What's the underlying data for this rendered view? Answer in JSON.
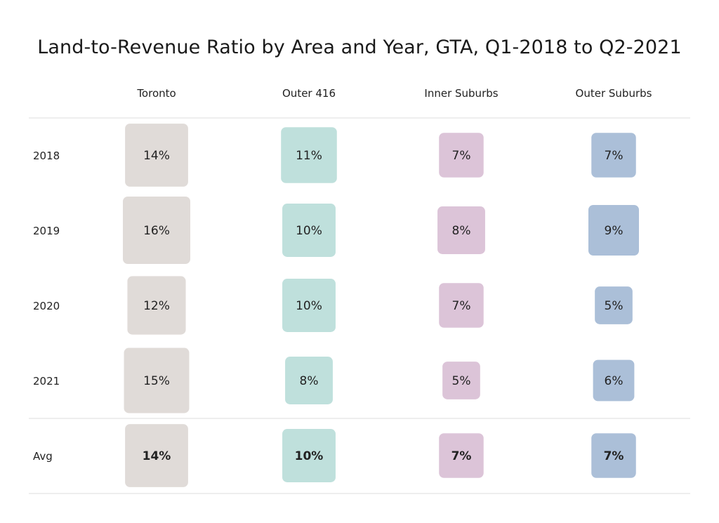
{
  "chart_data": {
    "type": "table",
    "title": "Land-to-Revenue Ratio by Area and Year, GTA, Q1-2018 to Q2-2021",
    "columns": [
      "Toronto",
      "Outer 416",
      "Inner Suburbs",
      "Outer Suburbs"
    ],
    "rows": [
      "2018",
      "2019",
      "2020",
      "2021",
      "Avg"
    ],
    "series": [
      {
        "name": "Toronto",
        "color": "#e0dbd8",
        "values": [
          14,
          16,
          12,
          15,
          14
        ],
        "labels": [
          "14%",
          "16%",
          "12%",
          "15%",
          "14%"
        ]
      },
      {
        "name": "Outer 416",
        "color": "#bfe0dc",
        "values": [
          11,
          10,
          10,
          8,
          10
        ],
        "labels": [
          "11%",
          "10%",
          "10%",
          "8%",
          "10%"
        ]
      },
      {
        "name": "Inner Suburbs",
        "color": "#dcc4d8",
        "values": [
          7,
          8,
          7,
          5,
          7
        ],
        "labels": [
          "7%",
          "8%",
          "7%",
          "5%",
          "7%"
        ]
      },
      {
        "name": "Outer Suburbs",
        "color": "#abbfd8",
        "values": [
          7,
          9,
          5,
          6,
          7
        ],
        "labels": [
          "7%",
          "9%",
          "5%",
          "6%",
          "7%"
        ]
      }
    ],
    "value_unit": "%",
    "bold_rows": [
      "Avg"
    ]
  }
}
